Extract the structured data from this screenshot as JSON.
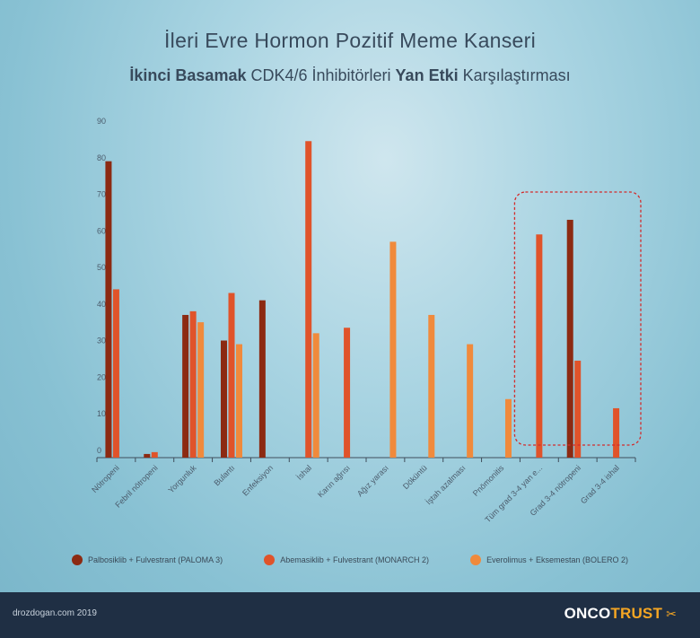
{
  "chart_data": {
    "type": "bar",
    "title": "İleri Evre Hormon Pozitif Meme Kanseri",
    "subtitle_parts": [
      {
        "text": "İkinci Basamak",
        "bold": true
      },
      {
        "text": " CDK4/6 İnhibitörleri ",
        "bold": false
      },
      {
        "text": "Yan Etki",
        "bold": true
      },
      {
        "text": " Karşılaştırması",
        "bold": false
      }
    ],
    "xlabel": "",
    "ylabel": "",
    "ylim": [
      0,
      90
    ],
    "yticks": [
      0,
      10,
      20,
      30,
      40,
      50,
      60,
      70,
      80,
      90
    ],
    "grid": false,
    "legend_position": "bottom",
    "categories": [
      "Nötropeni",
      "Febril nötropeni",
      "Yorgunluk",
      "Bulantı",
      "Enfeksiyon",
      "İshal",
      "Karın ağrısı",
      "Ağız yarası",
      "Döküntü",
      "İştah azalması",
      "Pnömonitis",
      "Tüm grad 3-4 yan e...",
      "Grad 3-4 nötropeni",
      "Grad 3-4 ishal"
    ],
    "series": [
      {
        "name": "Palbosiklib + Fulvestrant (PALOMA 3)",
        "color": "#8c2a12",
        "values": [
          81,
          1,
          39,
          32,
          43,
          null,
          null,
          null,
          null,
          null,
          null,
          null,
          65,
          null
        ]
      },
      {
        "name": "Abemasiklib + Fulvestrant (MONARCH 2)",
        "color": "#e0532a",
        "values": [
          46,
          1.5,
          40,
          45,
          null,
          86.5,
          35.5,
          null,
          null,
          null,
          null,
          61,
          26.5,
          13.5
        ]
      },
      {
        "name": "Everolimus + Eksemestan (BOLERO 2)",
        "color": "#f08a3c",
        "values": [
          null,
          null,
          37,
          31,
          null,
          34,
          null,
          59,
          39,
          31,
          16,
          null,
          null,
          null
        ]
      }
    ],
    "highlight": {
      "style": "dashed-rounded-box",
      "color": "#d42a2a",
      "from_category": 11,
      "to_category": 13
    }
  },
  "footer": {
    "url": "drozdogan.com 2019",
    "logo_part1": "ONCO",
    "logo_part2": "TRUST",
    "logo_icon": "scissors-icon"
  }
}
